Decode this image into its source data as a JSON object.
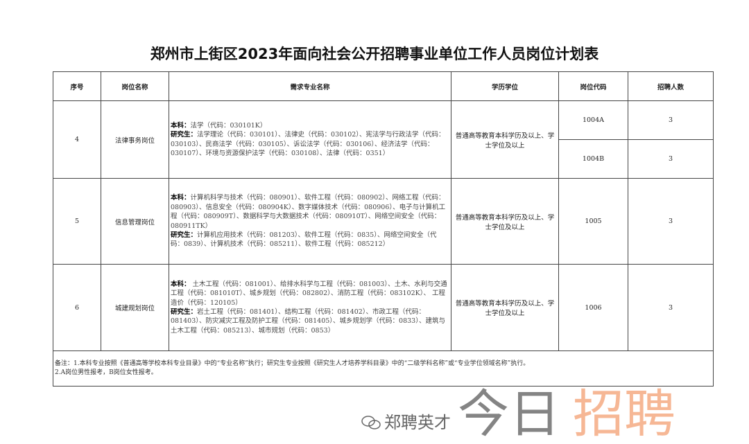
{
  "title": "郑州市上街区2023年面向社会公开招聘事业单位工作人员岗位计划表",
  "headers": [
    "序号",
    "岗位名称",
    "需求专业名称",
    "学历学位",
    "岗位代码",
    "招聘人数"
  ],
  "rows": [
    {
      "no": "4",
      "name": "法律事务岗位",
      "ug_label": "本科：",
      "ug": "法学（代码：030101K）",
      "pg_label": "研究生：",
      "pg": "法学理论（代码：030101）、法律史（代码：030102）、宪法学与行政法学（代码：030103）、民商法学（代码：030105）、诉讼法学（代码：030106）、经济法学（代码：030107）、环境与资源保护法学（代码：030108）、法律（代码：0351）",
      "edu": "普通高等教育本科学历及以上、学士学位及以上",
      "codes": [
        "1004A",
        "1004B"
      ],
      "counts": [
        "3",
        "3"
      ]
    },
    {
      "no": "5",
      "name": "信息管理岗位",
      "ug_label": "本科：",
      "ug": "计算机科学与技术（代码：080901）、软件工程（代码：080902）、网络工程（代码：080903）、信息安全（代码：080904K）、数字媒体技术（代码：080906）、电子与计算机工程（代码：080909T）、数据科学与大数据技术（代码：080910T）、网络空间安全（代码：080911TK）",
      "pg_label": "研究生：",
      "pg": "计算机应用技术（代码：081203）、软件工程（代码：0835）、网络空间安全（代码：0839）、计算机技术（代码：085211）、软件工程（代码：085212）",
      "edu": "普通高等教育本科学历及以上、学士学位及以上",
      "codes": [
        "1005"
      ],
      "counts": [
        "3"
      ]
    },
    {
      "no": "6",
      "name": "城建规划岗位",
      "ug_label": "本科：",
      "ug": " 土木工程（代码：081001）、给排水科学与工程（代码：081003）、土木、水利与交通工程（代码：081010T）、城乡规划（代码：082802）、消防工程（代码：083102K）、 工程造价（代码：120105）",
      "pg_label": "研究生：",
      "pg": "岩土工程（代码：081401）、结构工程（代码：081402）、市政工程（代码：081403）、防灾减灾工程及防护工程（代码：081405）、城乡规划学（代码：0833）、建筑与土木工程（代码：085213）、城市规划（代码：0853）",
      "edu": "普通高等教育本科学历及以上、学士学位及以上",
      "codes": [
        "1006"
      ],
      "counts": [
        "3"
      ]
    }
  ],
  "notes": [
    "备注：1.本科专业按照《普通高等学校本科专业目录》中的“专业名称”执行；研究生专业按照《研究生人才培养学科目录》中的“二级学科名称”或“专业学位领域名称”执行。",
    "2.A岗位男性报考，B岗位女性报考。"
  ],
  "watermark": {
    "part1": "今日",
    "part2": "招聘",
    "account": "郑聘英才",
    "icon": "wechat-icon",
    "color2": "#f5aa82"
  }
}
